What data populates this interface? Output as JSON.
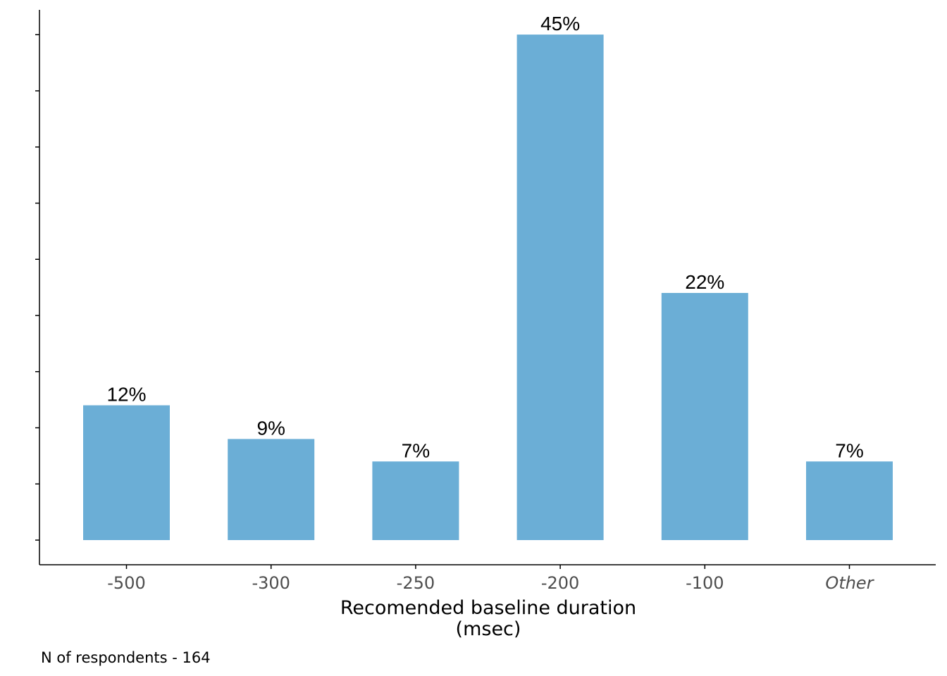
{
  "chart_data": {
    "type": "bar",
    "categories": [
      "-500",
      "-300",
      "-250",
      "-200",
      "-100",
      "Other"
    ],
    "values": [
      12,
      9,
      7,
      45,
      22,
      7
    ],
    "value_labels": [
      "12%",
      "9%",
      "7%",
      "45%",
      "22%",
      "7%"
    ],
    "italic_categories": [
      "Other"
    ],
    "xlabel_line1": "Recomended baseline duration",
    "xlabel_line2": "(msec)",
    "ylabel": "",
    "ylim": [
      0,
      47.2
    ],
    "bar_color": "#6baed6",
    "grid": false,
    "y_tick_labels_shown": false
  },
  "caption": "N of respondents - 164"
}
